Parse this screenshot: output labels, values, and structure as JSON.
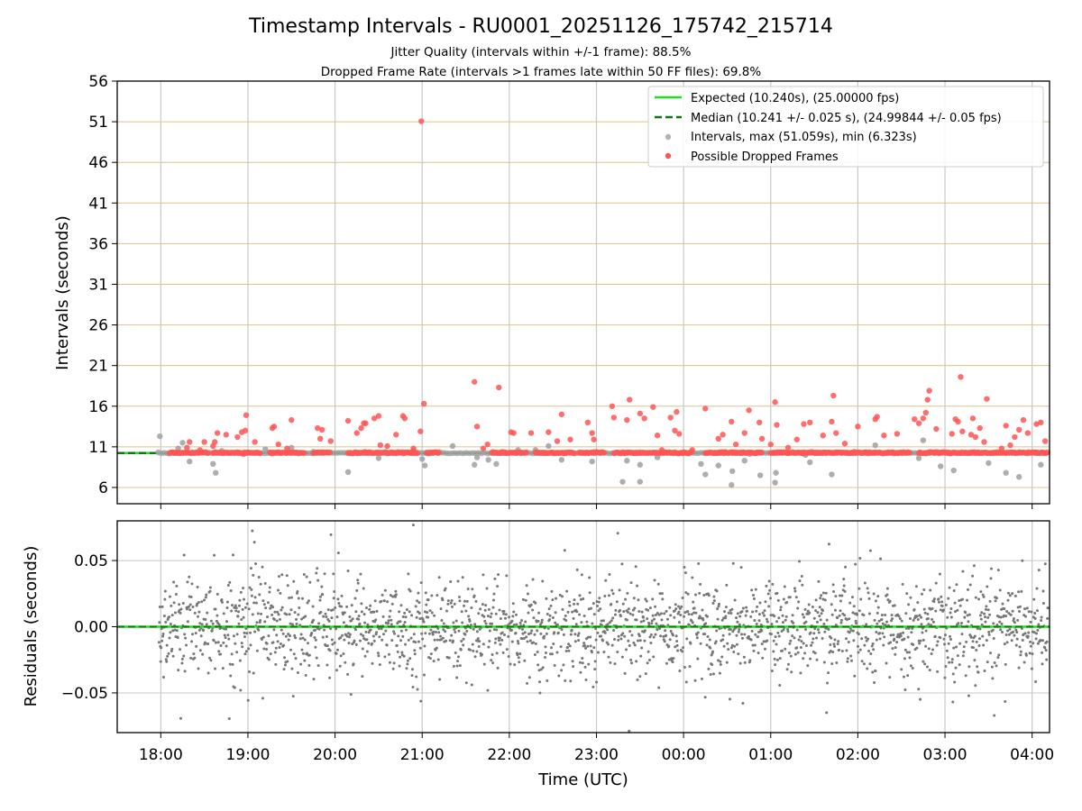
{
  "chart_data": {
    "type": "scatter",
    "title": "Timestamp Intervals - RU0001_20251126_175742_215714",
    "subtitle_lines": [
      "Jitter Quality (intervals within +/-1 frame): 88.5%",
      "Dropped Frame Rate (intervals >1 frames late within 50 FF files): 69.8%"
    ],
    "xlabel": "Time (UTC)",
    "x_ticks": [
      "18:00",
      "19:00",
      "20:00",
      "21:00",
      "22:00",
      "23:00",
      "00:00",
      "01:00",
      "02:00",
      "03:00",
      "04:00"
    ],
    "x_range_hours": [
      17.5,
      28.2
    ],
    "top_panel": {
      "ylabel": "Intervals (seconds)",
      "ylim": [
        4,
        56
      ],
      "yticks": [
        6,
        11,
        16,
        21,
        26,
        31,
        36,
        41,
        46,
        51,
        56
      ],
      "expected_interval": 10.24,
      "median_interval": 10.241,
      "legend_position": "top-right",
      "legend": [
        {
          "kind": "line",
          "color": "#22dd22",
          "label": "Expected (10.240s), (25.00000 fps)"
        },
        {
          "kind": "dashed",
          "color": "#117711",
          "label": "Median (10.241 +/- 0.025 s), (24.99844 +/- 0.05 fps)"
        },
        {
          "kind": "dot",
          "color": "#a0a0a0",
          "label": "Intervals, max (51.059s), min (6.323s)"
        },
        {
          "kind": "dot",
          "color": "#ff5555",
          "label": "Possible Dropped Frames"
        }
      ],
      "gray_outliers": [
        [
          17.99,
          12.3
        ],
        [
          18.2,
          10.8
        ],
        [
          18.25,
          11.5
        ],
        [
          18.33,
          9.2
        ],
        [
          18.6,
          8.9
        ],
        [
          18.63,
          7.8
        ],
        [
          18.7,
          10.5
        ],
        [
          19.2,
          10.7
        ],
        [
          19.5,
          10.9
        ],
        [
          19.75,
          10.4
        ],
        [
          20.15,
          7.9
        ],
        [
          20.5,
          9.6
        ],
        [
          20.8,
          10.3
        ],
        [
          20.9,
          10.5
        ],
        [
          21.0,
          9.5
        ],
        [
          21.03,
          8.7
        ],
        [
          21.35,
          11.1
        ],
        [
          21.6,
          8.8
        ],
        [
          21.63,
          9.7
        ],
        [
          21.76,
          9.4
        ],
        [
          21.85,
          8.9
        ],
        [
          22.1,
          10.6
        ],
        [
          22.3,
          10.6
        ],
        [
          22.45,
          11.1
        ],
        [
          22.6,
          9.4
        ],
        [
          22.95,
          9.2
        ],
        [
          23.3,
          6.7
        ],
        [
          23.35,
          9.3
        ],
        [
          23.5,
          6.7
        ],
        [
          23.5,
          8.8
        ],
        [
          23.7,
          9.7
        ],
        [
          24.2,
          8.9
        ],
        [
          24.25,
          7.6
        ],
        [
          24.4,
          8.7
        ],
        [
          24.55,
          6.3
        ],
        [
          24.56,
          8.0
        ],
        [
          24.7,
          9.3
        ],
        [
          24.88,
          7.5
        ],
        [
          25.05,
          6.6
        ],
        [
          25.06,
          7.8
        ],
        [
          25.4,
          10.0
        ],
        [
          25.45,
          9.1
        ],
        [
          25.7,
          7.6
        ],
        [
          26.2,
          11.2
        ],
        [
          26.4,
          10.3
        ],
        [
          26.7,
          9.6
        ],
        [
          26.75,
          11.8
        ],
        [
          26.95,
          8.6
        ],
        [
          27.0,
          10.3
        ],
        [
          27.1,
          8.1
        ],
        [
          27.5,
          9.0
        ],
        [
          27.7,
          7.8
        ],
        [
          27.85,
          7.3
        ],
        [
          28.1,
          8.8
        ]
      ],
      "dropped_outliers": [
        [
          18.15,
          10.3
        ],
        [
          18.3,
          10.9
        ],
        [
          18.33,
          11.6
        ],
        [
          18.45,
          10.6
        ],
        [
          18.5,
          11.6
        ],
        [
          18.6,
          11.1
        ],
        [
          18.62,
          11.6
        ],
        [
          18.65,
          12.7
        ],
        [
          18.75,
          12.5
        ],
        [
          18.88,
          12.2
        ],
        [
          18.93,
          12.8
        ],
        [
          18.97,
          13.0
        ],
        [
          18.98,
          14.9
        ],
        [
          19.08,
          11.6
        ],
        [
          19.28,
          13.3
        ],
        [
          19.3,
          13.5
        ],
        [
          19.35,
          11.3
        ],
        [
          19.45,
          10.8
        ],
        [
          19.5,
          14.3
        ],
        [
          19.8,
          13.3
        ],
        [
          19.83,
          12.0
        ],
        [
          19.85,
          13.1
        ],
        [
          19.95,
          11.7
        ],
        [
          20.15,
          14.2
        ],
        [
          20.25,
          12.7
        ],
        [
          20.3,
          13.3
        ],
        [
          20.33,
          13.9
        ],
        [
          20.35,
          13.9
        ],
        [
          20.45,
          14.5
        ],
        [
          20.5,
          14.8
        ],
        [
          20.52,
          11.2
        ],
        [
          20.6,
          11.1
        ],
        [
          20.7,
          12.5
        ],
        [
          20.78,
          14.8
        ],
        [
          20.8,
          14.5
        ],
        [
          20.9,
          10.8
        ],
        [
          20.98,
          12.9
        ],
        [
          20.99,
          51.06
        ],
        [
          21.02,
          16.3
        ],
        [
          21.6,
          19.0
        ],
        [
          21.63,
          13.5
        ],
        [
          21.7,
          10.8
        ],
        [
          21.75,
          11.3
        ],
        [
          21.88,
          18.3
        ],
        [
          22.02,
          12.8
        ],
        [
          22.05,
          12.7
        ],
        [
          22.25,
          12.7
        ],
        [
          22.45,
          12.8
        ],
        [
          22.55,
          11.7
        ],
        [
          22.6,
          15.0
        ],
        [
          22.7,
          11.9
        ],
        [
          22.9,
          14.0
        ],
        [
          22.95,
          12.7
        ],
        [
          22.97,
          11.9
        ],
        [
          23.18,
          16.0
        ],
        [
          23.2,
          14.6
        ],
        [
          23.35,
          14.3
        ],
        [
          23.38,
          16.8
        ],
        [
          23.5,
          15.1
        ],
        [
          23.55,
          14.5
        ],
        [
          23.65,
          15.9
        ],
        [
          23.7,
          12.4
        ],
        [
          23.75,
          10.6
        ],
        [
          23.85,
          14.6
        ],
        [
          23.9,
          13.0
        ],
        [
          23.92,
          15.3
        ],
        [
          23.95,
          12.6
        ],
        [
          24.1,
          10.6
        ],
        [
          24.25,
          15.7
        ],
        [
          24.4,
          12.0
        ],
        [
          24.45,
          12.5
        ],
        [
          24.55,
          14.1
        ],
        [
          24.6,
          11.3
        ],
        [
          24.7,
          12.7
        ],
        [
          24.75,
          15.5
        ],
        [
          24.87,
          14.0
        ],
        [
          24.9,
          12.0
        ],
        [
          25.0,
          11.3
        ],
        [
          25.05,
          16.5
        ],
        [
          25.07,
          13.7
        ],
        [
          25.2,
          10.9
        ],
        [
          25.3,
          11.9
        ],
        [
          25.38,
          13.8
        ],
        [
          25.45,
          14.0
        ],
        [
          25.6,
          12.4
        ],
        [
          25.7,
          14.1
        ],
        [
          25.72,
          17.3
        ],
        [
          25.75,
          12.7
        ],
        [
          25.85,
          11.4
        ],
        [
          26.0,
          13.5
        ],
        [
          26.2,
          14.4
        ],
        [
          26.22,
          14.7
        ],
        [
          26.3,
          12.4
        ],
        [
          26.45,
          12.6
        ],
        [
          26.65,
          14.4
        ],
        [
          26.7,
          13.9
        ],
        [
          26.75,
          14.5
        ],
        [
          26.78,
          15.2
        ],
        [
          26.8,
          16.8
        ],
        [
          26.82,
          17.9
        ],
        [
          26.9,
          13.2
        ],
        [
          27.08,
          12.6
        ],
        [
          27.12,
          14.4
        ],
        [
          27.15,
          14.1
        ],
        [
          27.18,
          19.6
        ],
        [
          27.2,
          12.9
        ],
        [
          27.3,
          12.5
        ],
        [
          27.32,
          14.5
        ],
        [
          27.35,
          12.2
        ],
        [
          27.4,
          13.3
        ],
        [
          27.45,
          11.6
        ],
        [
          27.48,
          16.9
        ],
        [
          27.65,
          10.8
        ],
        [
          27.7,
          13.6
        ],
        [
          27.75,
          11.2
        ],
        [
          27.8,
          12.2
        ],
        [
          27.85,
          13.1
        ],
        [
          27.9,
          14.3
        ],
        [
          27.95,
          12.7
        ],
        [
          28.05,
          13.8
        ],
        [
          28.1,
          14.0
        ],
        [
          28.15,
          11.7
        ]
      ]
    },
    "bottom_panel": {
      "ylabel": "Residuals (seconds)",
      "ylim": [
        -0.08,
        0.08
      ],
      "yticks": [
        "−0.05",
        "0.00",
        "0.05"
      ],
      "ytick_values": [
        -0.05,
        0.0,
        0.05
      ],
      "points_color": "#777777",
      "baseline": 0.0
    },
    "colors": {
      "expected": "#22dd22",
      "median": "#117711",
      "gray_points": "#a0a0a0",
      "dropped_points": "#ff5555",
      "hgrid": "#d8c48c",
      "vgrid": "#c8c8c8"
    }
  }
}
